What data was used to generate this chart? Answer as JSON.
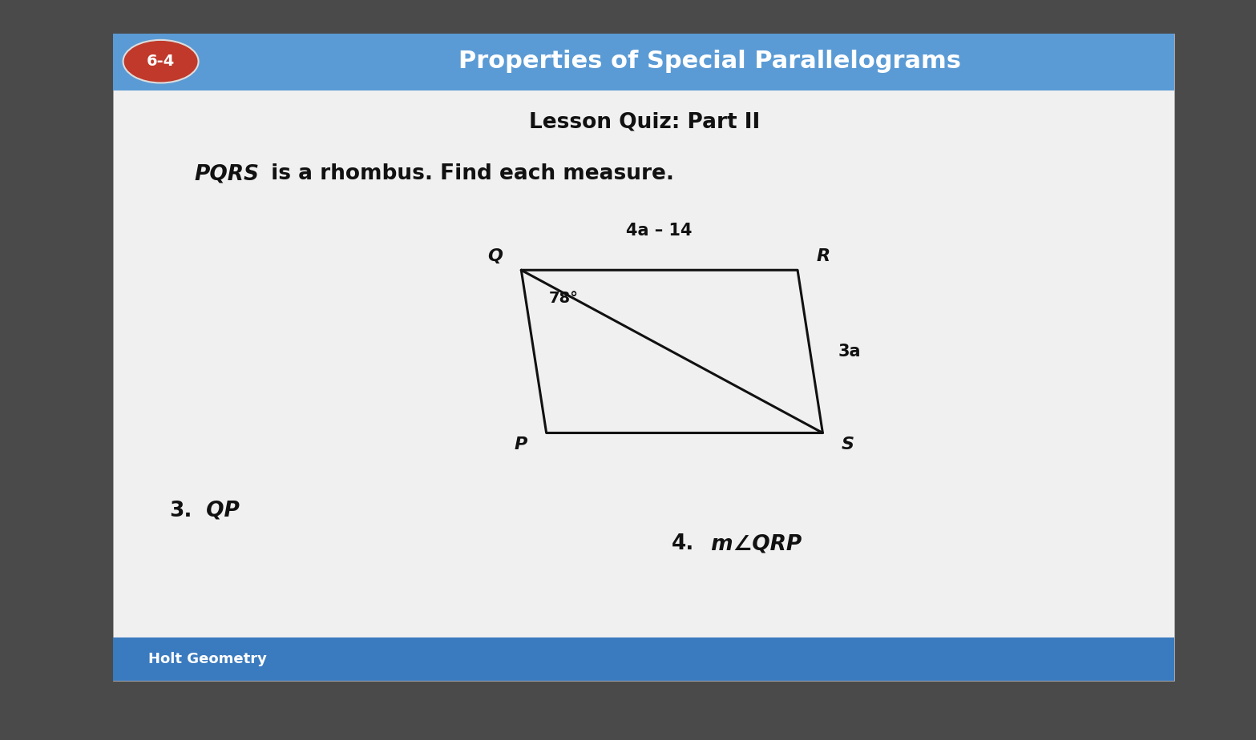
{
  "header_bg_color": "#5b9bd5",
  "header_text": "Properties of Special Parallelograms",
  "header_badge_text": "6-4",
  "header_badge_bg": "#c0392b",
  "header_badge_text_color": "#ffffff",
  "header_text_color": "#ffffff",
  "outer_bg_color": "#4a4a4a",
  "white_box_color": "#f0f0f0",
  "subtitle": "Lesson Quiz: Part II",
  "subtitle_color": "#111111",
  "body_italic_part": "PQRS",
  "body_regular_part": " is a rhombus. Find each measure.",
  "body_text_color": "#111111",
  "rhombus_Q": [
    0.415,
    0.635
  ],
  "rhombus_R": [
    0.635,
    0.635
  ],
  "rhombus_S": [
    0.655,
    0.415
  ],
  "rhombus_P": [
    0.435,
    0.415
  ],
  "label_4a_14": "4a – 14",
  "label_78": "78°",
  "label_3a": "3a",
  "q3_label": "3.",
  "q3_var": " QP",
  "q4_label": "4.",
  "q4_var": " m∠QRP",
  "footer_text": "Holt Geometry",
  "footer_bg": "#3a7abf",
  "footer_text_color": "#ffffff",
  "line_color": "#111111"
}
